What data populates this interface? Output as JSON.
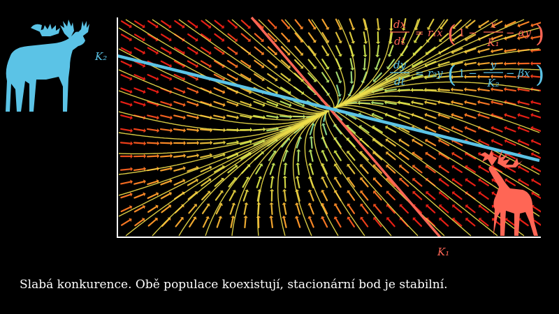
{
  "colors": {
    "background": "#000000",
    "moose": "#5bc3e6",
    "deer": "#ff6655",
    "nullcline_x": "#ff6655",
    "nullcline_y": "#5bc3e6",
    "streamline": "#f0e04a",
    "axes": "#ffffff"
  },
  "icons": {
    "moose": "moose-silhouette-icon",
    "deer": "deer-silhouette-icon"
  },
  "labels": {
    "k1": "K₁",
    "k2": "K₂"
  },
  "equations": {
    "eq1": {
      "lhs_num": "dx",
      "lhs_den": "dt",
      "eq": "=",
      "rate": "r₁x",
      "inner_one": "1 −",
      "frac_num": "x",
      "frac_den": "K₁",
      "tail": "− αy"
    },
    "eq2": {
      "lhs_num": "dy",
      "lhs_den": "dt",
      "eq": "=",
      "rate": "r₂y",
      "inner_one": "1 −",
      "frac_num": "y",
      "frac_den": "K₂",
      "tail": "− βx"
    }
  },
  "caption": "Slabá konkurence. Obě populace koexistují, stacionární bod je stabilní."
}
